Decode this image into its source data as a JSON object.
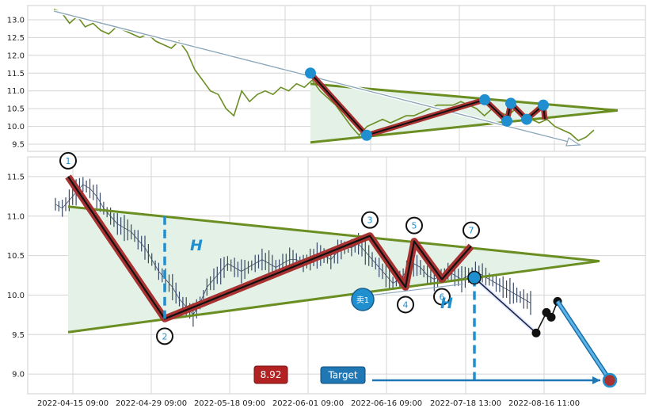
{
  "colors": {
    "grid": "#d4d4d4",
    "panel_bg": "#eaeaf2",
    "price_line_top": "#6b8e23",
    "trend_green": "#6b8e23",
    "triangle_fill": "#e3f1e6",
    "zigzag_red": "#a83232",
    "zigzag_black": "#111111",
    "pivot_blue": "#1f8fd0",
    "candle": "#3a4a66",
    "target_blue": "#1f77b4",
    "price_badge": "#b22222"
  },
  "chart_data": [
    {
      "type": "line",
      "panel": "overview",
      "ylim": [
        9.3,
        13.4
      ],
      "yticks": [
        "13.0",
        "12.5",
        "12.0",
        "11.5",
        "11.0",
        "10.5",
        "10.0",
        "9.5"
      ],
      "series": [
        {
          "values": [
            13.3,
            13.2,
            12.9,
            13.1,
            12.8,
            12.9,
            12.7,
            12.6,
            12.8,
            12.7,
            12.6,
            12.5,
            12.6,
            12.4,
            12.3,
            12.2,
            12.4,
            12.1,
            11.6,
            11.3,
            11.0,
            10.9,
            10.5,
            10.3,
            11.0,
            10.7,
            10.9,
            11.0,
            10.9,
            11.1,
            11.0,
            11.2,
            11.1,
            11.3,
            11.0,
            10.8,
            10.6,
            10.3,
            10.0,
            9.75,
            10.0,
            10.1,
            10.2,
            10.1,
            10.2,
            10.3,
            10.3,
            10.4,
            10.5,
            10.6,
            10.6,
            10.6,
            10.7,
            10.6,
            10.5,
            10.3,
            10.5,
            10.4,
            10.3,
            10.5,
            10.3,
            10.2,
            10.1,
            10.2,
            10.0,
            9.9,
            9.8,
            9.6,
            9.7,
            9.9
          ]
        }
      ],
      "pivots": [
        11.5,
        9.75,
        10.75,
        10.15,
        10.65,
        10.2,
        10.6
      ],
      "trendlines": {
        "upper": [
          11.2,
          10.45
        ],
        "lower": [
          9.55,
          10.45
        ]
      }
    },
    {
      "type": "line",
      "panel": "detail",
      "ylim": [
        8.75,
        11.75
      ],
      "yticks": [
        "11.5",
        "11.0",
        "10.5",
        "10.0",
        "9.5",
        "9.0"
      ],
      "xticks": [
        "2022-04-15 09:00",
        "2022-04-29 09:00",
        "2022-05-18 09:00",
        "2022-06-01 09:00",
        "2022-06-16 09:00",
        "2022-07-18 13:00",
        "2022-08-16 11:00"
      ],
      "series": [
        {
          "values": [
            11.15,
            11.1,
            11.2,
            11.3,
            11.4,
            11.35,
            11.25,
            11.1,
            11.0,
            10.9,
            10.85,
            10.8,
            10.7,
            10.6,
            10.45,
            10.3,
            10.2,
            10.1,
            9.95,
            9.85,
            9.75,
            9.9,
            10.1,
            10.2,
            10.3,
            10.4,
            10.35,
            10.3,
            10.35,
            10.4,
            10.45,
            10.4,
            10.35,
            10.4,
            10.45,
            10.45,
            10.4,
            10.45,
            10.5,
            10.5,
            10.45,
            10.55,
            10.6,
            10.6,
            10.65,
            10.55,
            10.45,
            10.35,
            10.25,
            10.15,
            10.2,
            10.3,
            10.4,
            10.35,
            10.25,
            10.2,
            10.25,
            10.3,
            10.25,
            10.2,
            10.25,
            10.3,
            10.25,
            10.2,
            10.15,
            10.1,
            10.05,
            10.0,
            9.95,
            9.9
          ]
        }
      ],
      "pivots": {
        "labels": [
          "1",
          "2",
          "3",
          "4",
          "5",
          "6",
          "7"
        ],
        "values": [
          11.5,
          9.7,
          10.75,
          10.1,
          10.68,
          10.2,
          10.62
        ]
      },
      "trendlines": {
        "upper": [
          11.12,
          10.43
        ],
        "lower": [
          9.53,
          10.43
        ]
      },
      "projection": {
        "points": [
          10.22,
          9.52,
          9.78,
          9.72,
          9.92
        ],
        "target": 8.92
      },
      "annotations": {
        "pattern_label": "H",
        "sell_label": "卖1",
        "target_label": "Target",
        "target_price": "8.92"
      }
    }
  ]
}
